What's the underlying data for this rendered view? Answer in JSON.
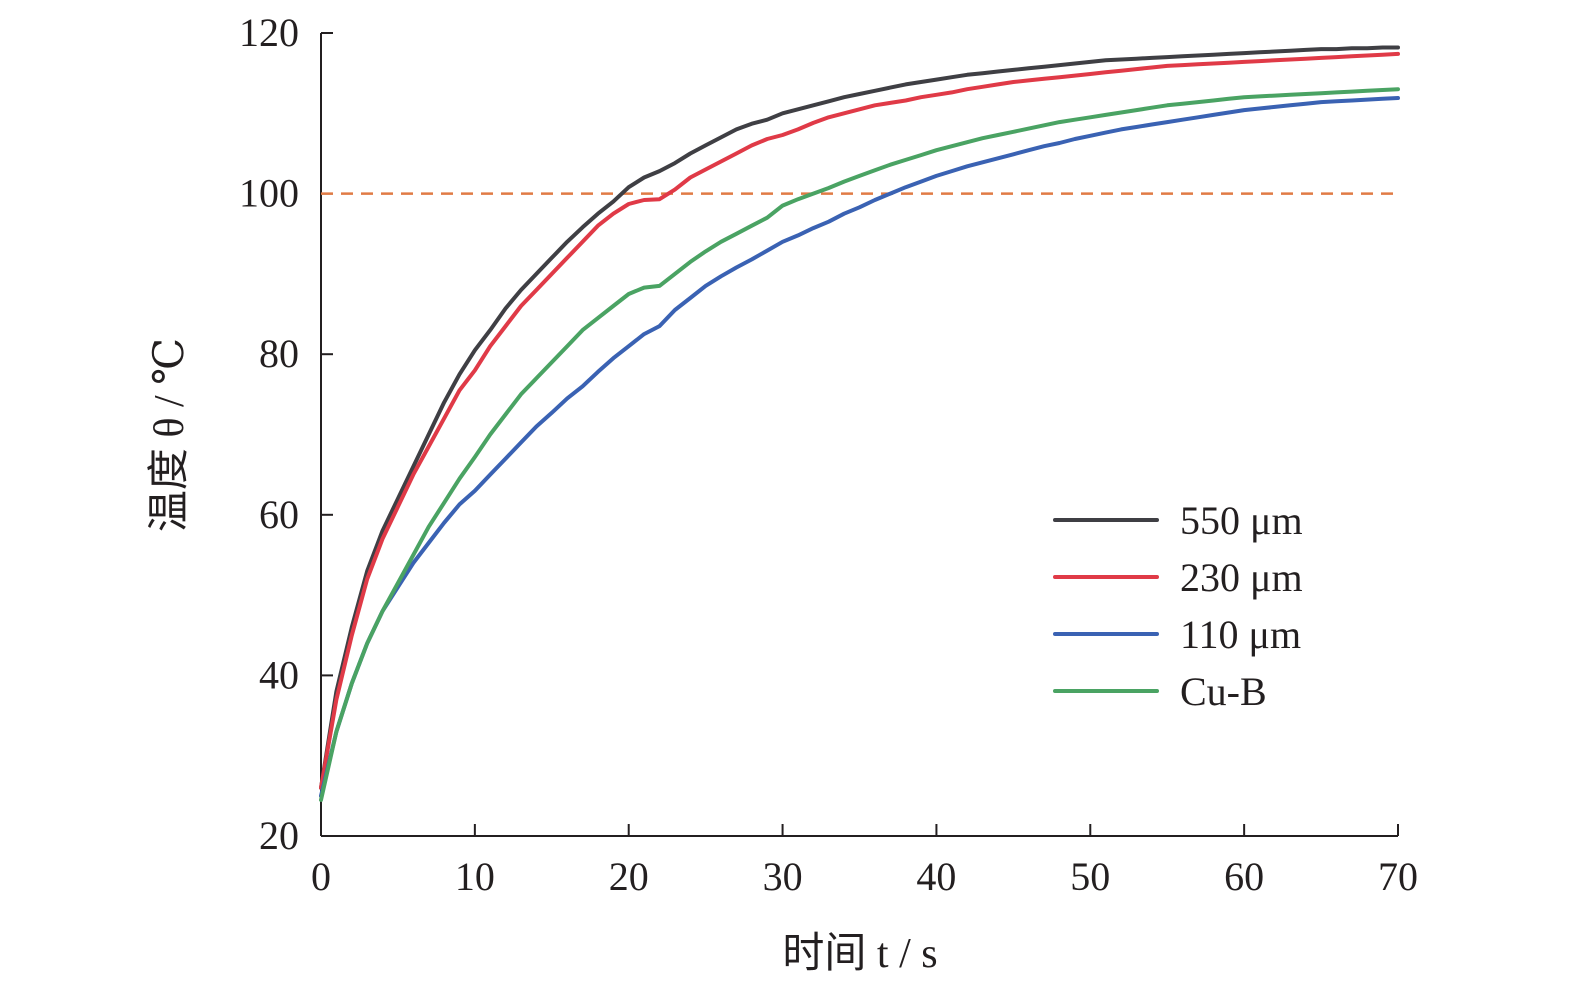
{
  "chart_data": {
    "type": "line",
    "title": "",
    "xlabel": "时间 t / s",
    "ylabel": "温度 θ / ℃",
    "xlim": [
      0,
      70
    ],
    "ylim": [
      20,
      120
    ],
    "xticks": [
      0,
      10,
      20,
      30,
      40,
      50,
      60,
      70
    ],
    "yticks": [
      20,
      40,
      60,
      80,
      100,
      120
    ],
    "grid": false,
    "legend_position": "right",
    "reference_line": {
      "y": 100,
      "style": "dashed",
      "color": "#e07b45"
    },
    "series": [
      {
        "name": "550 μm",
        "color": "#3f3f44",
        "x": [
          0,
          1,
          2,
          3,
          4,
          5,
          6,
          7,
          8,
          9,
          10,
          11,
          12,
          13,
          14,
          15,
          16,
          17,
          18,
          19,
          20,
          21,
          22,
          23,
          24,
          25,
          26,
          27,
          28,
          29,
          30,
          31,
          32,
          33,
          34,
          35,
          36,
          37,
          38,
          39,
          40,
          41,
          42,
          43,
          44,
          45,
          46,
          47,
          48,
          49,
          50,
          51,
          52,
          53,
          54,
          55,
          56,
          57,
          58,
          59,
          60,
          61,
          62,
          63,
          64,
          65,
          66,
          67,
          68,
          69,
          70
        ],
        "y": [
          26,
          38,
          46,
          53,
          58,
          62,
          66,
          70,
          74,
          77.5,
          80.5,
          83,
          85.7,
          88,
          90,
          92,
          94,
          95.8,
          97.5,
          99,
          100.8,
          102,
          102.8,
          103.8,
          105,
          106,
          107,
          108,
          108.7,
          109.2,
          110,
          110.5,
          111,
          111.5,
          112,
          112.4,
          112.8,
          113.2,
          113.6,
          113.9,
          114.2,
          114.5,
          114.8,
          115,
          115.2,
          115.4,
          115.6,
          115.8,
          116,
          116.2,
          116.4,
          116.6,
          116.7,
          116.8,
          116.9,
          117,
          117.1,
          117.2,
          117.3,
          117.4,
          117.5,
          117.6,
          117.7,
          117.8,
          117.9,
          118,
          118,
          118.1,
          118.1,
          118.2,
          118.2
        ]
      },
      {
        "name": "230 μm",
        "color": "#e03a47",
        "x": [
          0,
          1,
          2,
          3,
          4,
          5,
          6,
          7,
          8,
          9,
          10,
          11,
          12,
          13,
          14,
          15,
          16,
          17,
          18,
          19,
          20,
          21,
          22,
          23,
          24,
          25,
          26,
          27,
          28,
          29,
          30,
          31,
          32,
          33,
          34,
          35,
          36,
          37,
          38,
          39,
          40,
          41,
          42,
          43,
          44,
          45,
          46,
          47,
          48,
          49,
          50,
          51,
          52,
          53,
          54,
          55,
          56,
          57,
          58,
          59,
          60,
          61,
          62,
          63,
          64,
          65,
          66,
          67,
          68,
          69,
          70
        ],
        "y": [
          26,
          37,
          45,
          52,
          57,
          61,
          65,
          68.5,
          72,
          75.5,
          78,
          81,
          83.5,
          86,
          88,
          90,
          92,
          94,
          96,
          97.5,
          98.7,
          99.2,
          99.3,
          100.5,
          102,
          103,
          104,
          105,
          106,
          106.8,
          107.3,
          108,
          108.8,
          109.5,
          110,
          110.5,
          111,
          111.3,
          111.6,
          112,
          112.3,
          112.6,
          113,
          113.3,
          113.6,
          113.9,
          114.1,
          114.3,
          114.5,
          114.7,
          114.9,
          115.1,
          115.3,
          115.5,
          115.7,
          115.9,
          116,
          116.1,
          116.2,
          116.3,
          116.4,
          116.5,
          116.6,
          116.7,
          116.8,
          116.9,
          117,
          117.1,
          117.2,
          117.3,
          117.4
        ]
      },
      {
        "name": "110 μm",
        "color": "#3a62b3",
        "x": [
          0,
          1,
          2,
          3,
          4,
          5,
          6,
          7,
          8,
          9,
          10,
          11,
          12,
          13,
          14,
          15,
          16,
          17,
          18,
          19,
          20,
          21,
          22,
          23,
          24,
          25,
          26,
          27,
          28,
          29,
          30,
          31,
          32,
          33,
          34,
          35,
          36,
          37,
          38,
          39,
          40,
          41,
          42,
          43,
          44,
          45,
          46,
          47,
          48,
          49,
          50,
          51,
          52,
          53,
          54,
          55,
          56,
          57,
          58,
          59,
          60,
          61,
          62,
          63,
          64,
          65,
          66,
          67,
          68,
          69,
          70
        ],
        "y": [
          25,
          33,
          39,
          44,
          48,
          51,
          54,
          56.5,
          59,
          61.3,
          63,
          65,
          67,
          69,
          71,
          72.7,
          74.5,
          76,
          77.8,
          79.5,
          81,
          82.5,
          83.5,
          85.5,
          87,
          88.5,
          89.7,
          90.8,
          91.8,
          92.9,
          94,
          94.8,
          95.7,
          96.5,
          97.5,
          98.3,
          99.2,
          100,
          100.8,
          101.5,
          102.2,
          102.8,
          103.4,
          103.9,
          104.4,
          104.9,
          105.4,
          105.9,
          106.3,
          106.8,
          107.2,
          107.6,
          108,
          108.3,
          108.6,
          108.9,
          109.2,
          109.5,
          109.8,
          110.1,
          110.4,
          110.6,
          110.8,
          111,
          111.2,
          111.4,
          111.5,
          111.6,
          111.7,
          111.8,
          111.9
        ]
      },
      {
        "name": "Cu-B",
        "color": "#4aa363",
        "x": [
          0,
          1,
          2,
          3,
          4,
          5,
          6,
          7,
          8,
          9,
          10,
          11,
          12,
          13,
          14,
          15,
          16,
          17,
          18,
          19,
          20,
          21,
          22,
          23,
          24,
          25,
          26,
          27,
          28,
          29,
          30,
          31,
          32,
          33,
          34,
          35,
          36,
          37,
          38,
          39,
          40,
          41,
          42,
          43,
          44,
          45,
          46,
          47,
          48,
          49,
          50,
          51,
          52,
          53,
          54,
          55,
          56,
          57,
          58,
          59,
          60,
          61,
          62,
          63,
          64,
          65,
          66,
          67,
          68,
          69,
          70
        ],
        "y": [
          24.5,
          33,
          39,
          44,
          48,
          51.5,
          55,
          58.5,
          61.5,
          64.5,
          67.2,
          70,
          72.5,
          75,
          77,
          79,
          81,
          83,
          84.5,
          86,
          87.5,
          88.3,
          88.5,
          90,
          91.5,
          92.8,
          94,
          95,
          96,
          97,
          98.5,
          99.3,
          100,
          100.7,
          101.5,
          102.2,
          102.9,
          103.6,
          104.2,
          104.8,
          105.4,
          105.9,
          106.4,
          106.9,
          107.3,
          107.7,
          108.1,
          108.5,
          108.9,
          109.2,
          109.5,
          109.8,
          110.1,
          110.4,
          110.7,
          111,
          111.2,
          111.4,
          111.6,
          111.8,
          112,
          112.1,
          112.2,
          112.3,
          112.4,
          112.5,
          112.6,
          112.7,
          112.8,
          112.9,
          113
        ]
      }
    ]
  }
}
